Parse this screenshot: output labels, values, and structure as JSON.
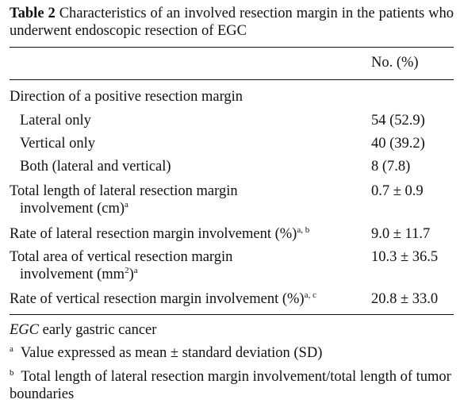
{
  "caption": {
    "label": "Table 2",
    "text": "Characteristics of an involved resection margin in the patients who underwent endoscopic resection of EGC"
  },
  "column_header": "No. (%)",
  "section": "Direction of a positive resection margin",
  "rows": [
    {
      "label": "Lateral only",
      "value": "54 (52.9)"
    },
    {
      "label": "Vertical only",
      "value": "40 (39.2)"
    },
    {
      "label": "Both (lateral and vertical)",
      "value": "8 (7.8)"
    },
    {
      "label": "Total length of lateral resection margin",
      "label_cont": "involvement (cm)",
      "sup": "a",
      "value": "0.7 ± 0.9"
    },
    {
      "label": "Rate of lateral resection margin involvement (%)",
      "sup": "a, b",
      "value": "9.0 ± 11.7"
    },
    {
      "label": "Total area of vertical resection margin",
      "label_cont_pre": "involvement (mm",
      "label_cont_sup": "2",
      "label_cont_post": ")",
      "sup": "a",
      "value": "10.3 ± 36.5"
    },
    {
      "label": "Rate of vertical resection margin involvement (%)",
      "sup": "a, c",
      "value": "20.8 ± 33.0"
    }
  ],
  "footnotes": {
    "abbrev_term": "EGC",
    "abbrev_def": "early gastric cancer",
    "a_mark": "a",
    "a_text": "Value expressed as mean ± standard deviation (SD)",
    "b_mark": "b",
    "b_text": "Total length of lateral resection margin involvement/total length of tumor boundaries"
  }
}
